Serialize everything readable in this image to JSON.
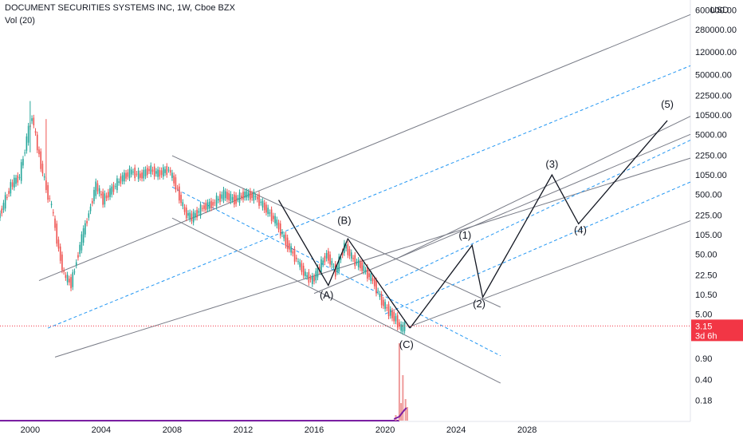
{
  "header": {
    "title": "DOCUMENT SECURITIES SYSTEMS INC, 1W, Cboe BZX",
    "indicator": "Vol (20)",
    "currency": "USD"
  },
  "chart_data": {
    "type": "line",
    "title": "DOCUMENT SECURITIES SYSTEMS INC, 1W, Cboe BZX",
    "yscale": "log",
    "ylim": [
      0.08,
      800000
    ],
    "xlim": [
      1998.3,
      2037.2
    ],
    "y_ticks": [
      {
        "label": "600000.00",
        "value": 600000
      },
      {
        "label": "280000.00",
        "value": 280000
      },
      {
        "label": "120000.00",
        "value": 120000
      },
      {
        "label": "50000.00",
        "value": 50000
      },
      {
        "label": "22500.00",
        "value": 22500
      },
      {
        "label": "10500.00",
        "value": 10500
      },
      {
        "label": "5000.00",
        "value": 5000
      },
      {
        "label": "2250.00",
        "value": 2250
      },
      {
        "label": "1050.00",
        "value": 1050
      },
      {
        "label": "500.00",
        "value": 500
      },
      {
        "label": "225.00",
        "value": 225
      },
      {
        "label": "105.00",
        "value": 105
      },
      {
        "label": "50.00",
        "value": 50
      },
      {
        "label": "22.50",
        "value": 22.5
      },
      {
        "label": "10.50",
        "value": 10.5
      },
      {
        "label": "5.00",
        "value": 5
      },
      {
        "label": "0.90",
        "value": 0.9
      },
      {
        "label": "0.40",
        "value": 0.4
      },
      {
        "label": "0.18",
        "value": 0.18
      }
    ],
    "x_ticks": [
      "2000",
      "2004",
      "2008",
      "2012",
      "2016",
      "2020",
      "2024",
      "2028"
    ],
    "x_tick_values": [
      2000,
      2004,
      2008,
      2012,
      2016,
      2020,
      2024,
      2028
    ],
    "last_price": {
      "label": "3.15",
      "value": 3.15,
      "countdown": "3d 6h",
      "color": "#f23645"
    },
    "price_series": {
      "name": "",
      "x": [
        1998.3,
        1999.0,
        1999.5,
        2000.0,
        2000.2,
        2000.5,
        2001.0,
        2001.3,
        2001.7,
        2002.0,
        2002.4,
        2002.7,
        2003.0,
        2003.4,
        2003.8,
        2004.2,
        2004.7,
        2005.2,
        2005.8,
        2006.3,
        2006.8,
        2007.3,
        2007.9,
        2008.3,
        2008.8,
        2009.2,
        2009.8,
        2010.4,
        2011.0,
        2011.6,
        2012.2,
        2012.8,
        2013.3,
        2013.9,
        2014.5,
        2015.1,
        2015.6,
        2016.0,
        2016.4,
        2016.8,
        2017.3,
        2017.8,
        2018.3,
        2018.8,
        2019.4,
        2019.9,
        2020.3,
        2020.7,
        2021.0,
        2021.2
      ],
      "y": [
        200,
        700,
        1000,
        6000,
        10000,
        3000,
        600,
        300,
        60,
        22,
        16,
        40,
        90,
        250,
        700,
        400,
        600,
        900,
        1200,
        1000,
        1300,
        1100,
        1300,
        700,
        250,
        200,
        300,
        350,
        500,
        400,
        500,
        450,
        300,
        180,
        80,
        40,
        22,
        18,
        30,
        50,
        25,
        70,
        40,
        30,
        18,
        8,
        5.5,
        4.0,
        2.8,
        3.15
      ],
      "up_color": "#26a69a",
      "down_color": "#ef5350"
    },
    "elliott_waves": {
      "labels": [
        {
          "label": "(A)",
          "x": 2016.7,
          "y": 9.0
        },
        {
          "label": "(B)",
          "x": 2017.7,
          "y": 160
        },
        {
          "label": "(C)",
          "x": 2021.2,
          "y": 1.35
        },
        {
          "label": "(1)",
          "x": 2024.5,
          "y": 90
        },
        {
          "label": "(2)",
          "x": 2025.3,
          "y": 6.5
        },
        {
          "label": "(3)",
          "x": 2029.4,
          "y": 1400
        },
        {
          "label": "(4)",
          "x": 2031.0,
          "y": 110
        },
        {
          "label": "(5)",
          "x": 2035.9,
          "y": 14000
        }
      ],
      "correction_path": {
        "x": [
          2014.0,
          2016.8,
          2017.9,
          2021.4
        ],
        "y": [
          400,
          15,
          90,
          2.9
        ]
      },
      "impulse_path": {
        "x": [
          2021.4,
          2024.9,
          2025.5,
          2029.4,
          2030.9,
          2035.9
        ],
        "y": [
          2.9,
          70,
          9.5,
          1050,
          160,
          8500
        ]
      }
    },
    "lines": {
      "solid_color": "#787b86",
      "dashed_color": "#2196f3",
      "purple_color": "#7b1fa2",
      "price_dot_color": "#f23645"
    },
    "grid": false,
    "legend": "none"
  }
}
